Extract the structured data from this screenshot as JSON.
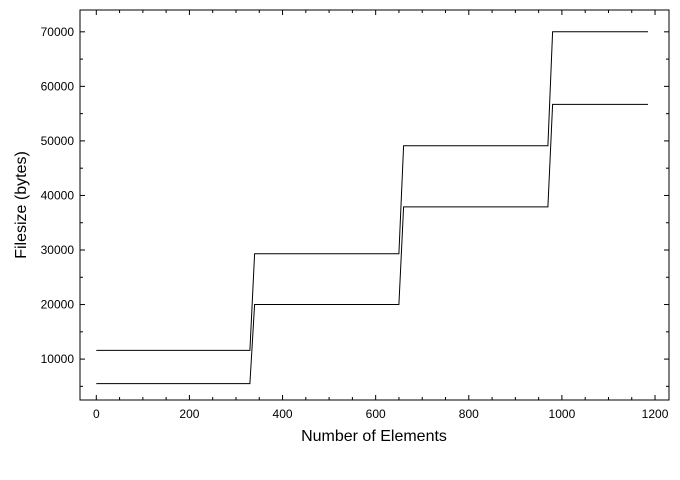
{
  "chart_data": {
    "type": "line",
    "xlabel": "Number of Elements",
    "ylabel": "Filesize (bytes)",
    "xlim": [
      -35,
      1230
    ],
    "ylim": [
      2500,
      74000
    ],
    "grid": false,
    "x_ticks": [
      {
        "value": 0,
        "label": "0"
      },
      {
        "value": 200,
        "label": "200"
      },
      {
        "value": 400,
        "label": "400"
      },
      {
        "value": 600,
        "label": "600"
      },
      {
        "value": 800,
        "label": "800"
      },
      {
        "value": 1000,
        "label": "1000"
      },
      {
        "value": 1200,
        "label": "1200"
      }
    ],
    "x_minor_step": 50,
    "y_ticks": [
      {
        "value": 10000,
        "label": "10000"
      },
      {
        "value": 20000,
        "label": "20000"
      },
      {
        "value": 30000,
        "label": "30000"
      },
      {
        "value": 40000,
        "label": "40000"
      },
      {
        "value": 50000,
        "label": "50000"
      },
      {
        "value": 60000,
        "label": "60000"
      },
      {
        "value": 70000,
        "label": "70000"
      }
    ],
    "y_minor_step": 5000,
    "series": [
      {
        "color": "#000000",
        "x": [
          0,
          330,
          340,
          650,
          660,
          970,
          980,
          1185
        ],
        "y": [
          11600,
          11600,
          29300,
          29300,
          49100,
          49100,
          70000,
          70000
        ]
      },
      {
        "color": "#000000",
        "x": [
          0,
          330,
          340,
          650,
          660,
          970,
          980,
          1185
        ],
        "y": [
          5500,
          5500,
          20000,
          20000,
          37900,
          37900,
          56700,
          56700
        ]
      }
    ]
  }
}
